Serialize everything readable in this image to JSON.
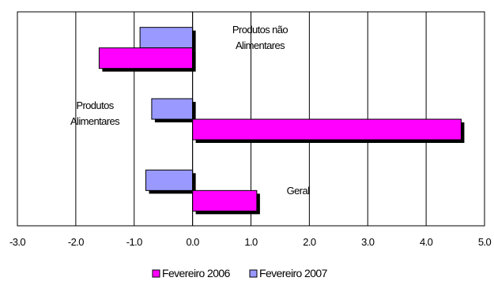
{
  "chart_data": {
    "type": "bar",
    "orientation": "horizontal",
    "categories": [
      "Produtos não Alimentares",
      "Produtos Alimentares",
      "Geral"
    ],
    "category_label_lines": [
      [
        "Produtos não",
        "Alimentares"
      ],
      [
        "Produtos",
        "Alimentares"
      ],
      [
        "Geral"
      ]
    ],
    "series": [
      {
        "name": "Fevereiro 2006",
        "values": [
          -1.6,
          4.6,
          1.1
        ],
        "color": "#ff00ff"
      },
      {
        "name": "Fevereiro 2007",
        "values": [
          -0.9,
          -0.7,
          -0.8
        ],
        "color": "#9999ff"
      }
    ],
    "xlim": [
      -3.0,
      5.0
    ],
    "xticks": [
      -3.0,
      -2.0,
      -1.0,
      0.0,
      1.0,
      2.0,
      3.0,
      4.0,
      5.0
    ],
    "tick_labels": [
      "-3.0",
      "-2.0",
      "-1.0",
      "0.0",
      "1.0",
      "2.0",
      "3.0",
      "4.0",
      "5.0"
    ],
    "grid": "vertical",
    "legend_position": "bottom",
    "shadow_color": "#000000"
  }
}
